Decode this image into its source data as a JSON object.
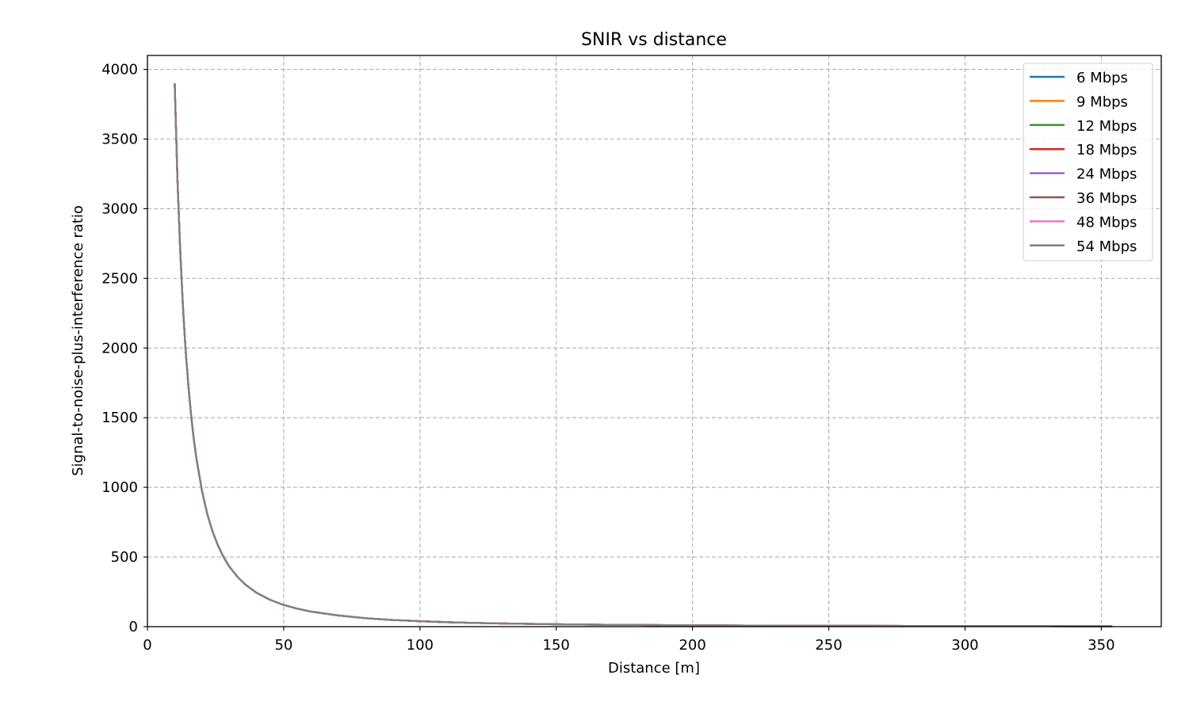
{
  "chart_data": {
    "type": "line",
    "title": "SNIR vs distance",
    "xlabel": "Distance [m]",
    "ylabel": "Signal-to-noise-plus-interference ratio",
    "xlim": [
      0,
      372
    ],
    "ylim": [
      0,
      4100
    ],
    "xticks": [
      "0",
      "50",
      "100",
      "150",
      "200",
      "250",
      "300",
      "350"
    ],
    "yticks": [
      "0",
      "500",
      "1000",
      "1500",
      "2000",
      "2500",
      "3000",
      "3500",
      "4000"
    ],
    "grid": true,
    "legend_position": "top-right",
    "x": [
      10,
      11,
      12,
      13,
      14,
      15,
      16,
      17,
      18,
      20,
      22,
      24,
      26,
      28,
      30,
      33,
      36,
      40,
      45,
      50,
      55,
      60,
      70,
      80,
      90,
      100,
      110,
      120,
      130,
      140,
      150,
      160,
      170,
      180,
      190,
      200,
      220,
      240,
      260,
      280,
      300,
      320,
      340,
      354
    ],
    "y": [
      3900,
      3223,
      2708,
      2308,
      1990,
      1733,
      1523,
      1349,
      1204,
      975,
      806,
      677,
      577,
      497,
      433,
      358,
      301,
      244,
      193,
      156,
      129,
      108,
      80,
      61,
      48,
      39,
      32,
      27,
      23,
      20,
      17,
      15,
      13,
      12,
      11,
      10,
      8,
      7,
      6,
      5,
      4,
      4,
      3,
      3
    ],
    "series": [
      {
        "name": "6 Mbps",
        "color": "#1f77b4"
      },
      {
        "name": "9 Mbps",
        "color": "#ff7f0e"
      },
      {
        "name": "12 Mbps",
        "color": "#2ca02c"
      },
      {
        "name": "18 Mbps",
        "color": "#d62728"
      },
      {
        "name": "24 Mbps",
        "color": "#9467bd"
      },
      {
        "name": "36 Mbps",
        "color": "#8c564b"
      },
      {
        "name": "48 Mbps",
        "color": "#e377c2"
      },
      {
        "name": "54 Mbps",
        "color": "#7f7f7f"
      }
    ]
  }
}
